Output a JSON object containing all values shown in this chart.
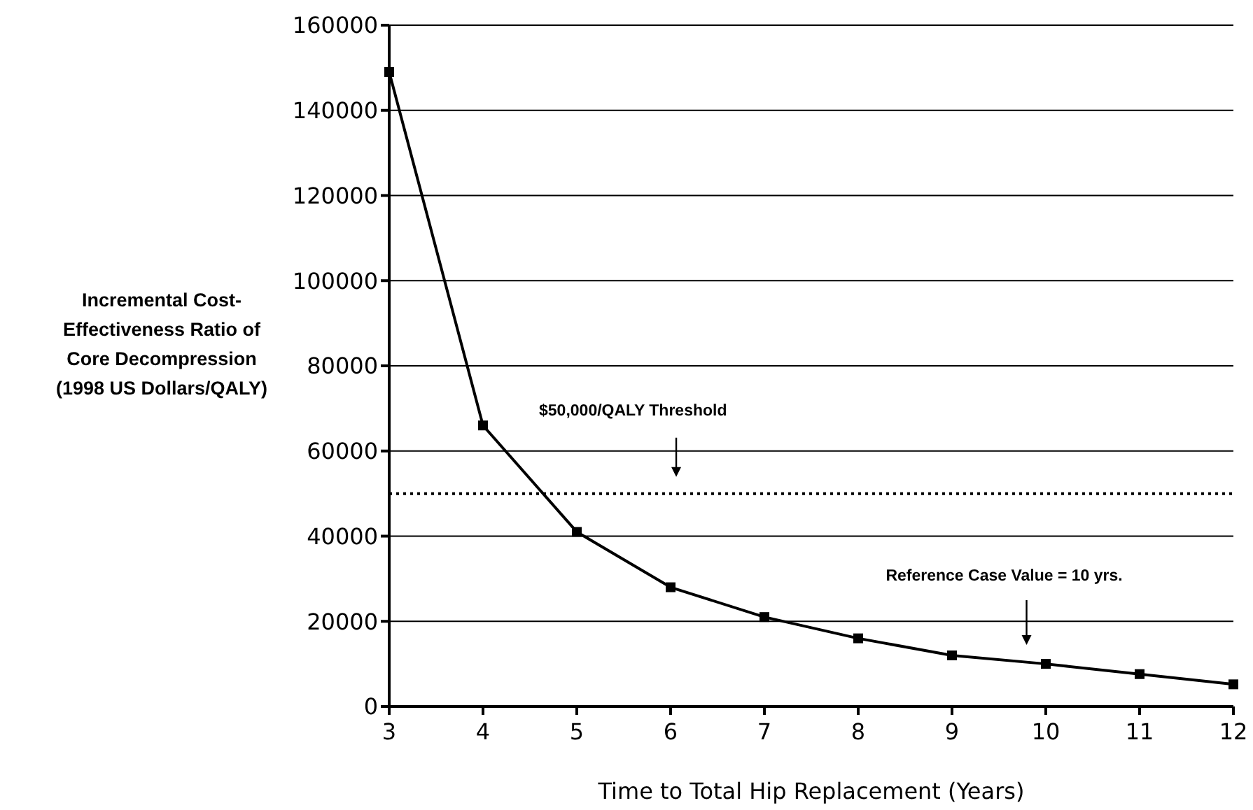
{
  "chart_data": {
    "type": "line",
    "xlabel": "Time to Total Hip Replacement (Years)",
    "ylabel": "Incremental Cost-Effectiveness Ratio of Core Decompression (1998 US Dollars/QALY)",
    "categories": [
      "3",
      "4",
      "5",
      "6",
      "7",
      "8",
      "9",
      "10",
      "11",
      "12"
    ],
    "series": [
      {
        "color": "#000000",
        "values": [
          149000,
          66000,
          41000,
          28000,
          21000,
          16000,
          12000,
          10000,
          7600,
          5200
        ]
      }
    ],
    "ylim": [
      0,
      160000
    ],
    "yticks": [
      0,
      20000,
      40000,
      60000,
      80000,
      100000,
      120000,
      140000,
      160000
    ],
    "grid": "y",
    "marker": "square",
    "line_style": "solid",
    "ref_lines": [
      {
        "axis": "y",
        "value": 50000,
        "label": "$50,000/QALY Threshold",
        "line_style": "dotted",
        "color": "#000000"
      }
    ],
    "annotations": [
      "Reference Case Value = 10 yrs."
    ]
  }
}
